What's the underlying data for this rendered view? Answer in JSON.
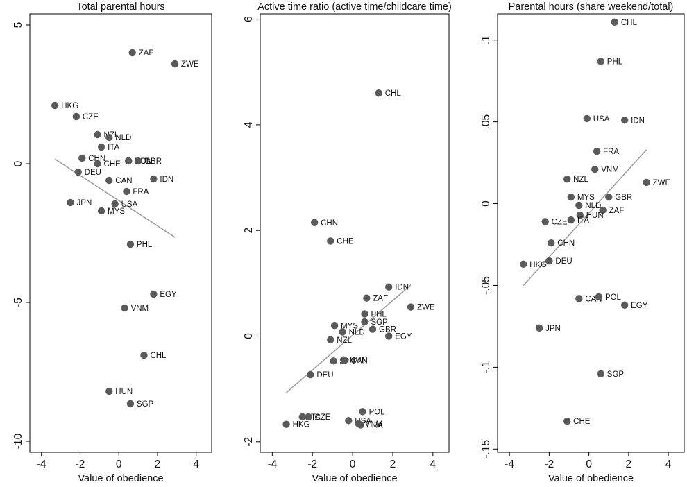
{
  "chart_data": [
    {
      "type": "scatter",
      "title": "Total parental hours",
      "xlabel": "Value of obedience",
      "ylabel": "",
      "xlim": [
        -4.6,
        4.8
      ],
      "ylim": [
        -10.4,
        5.4
      ],
      "xticks": [
        -4,
        -2,
        0,
        2,
        4
      ],
      "yticks": [
        5,
        0,
        -5,
        -10
      ],
      "marker_color": "#5a5a5a",
      "fit_color": "#9a9a9a",
      "fit_line": {
        "x": [
          -3.3,
          2.9
        ],
        "y": [
          0.17,
          -2.65
        ]
      },
      "points": [
        {
          "label": "ZAF",
          "x": 0.7,
          "y": 4.0
        },
        {
          "label": "ZWE",
          "x": 2.9,
          "y": 3.6
        },
        {
          "label": "HKG",
          "x": -3.3,
          "y": 2.1
        },
        {
          "label": "CZE",
          "x": -2.2,
          "y": 1.7
        },
        {
          "label": "NZL",
          "x": -1.1,
          "y": 1.05
        },
        {
          "label": "NLD",
          "x": -0.5,
          "y": 0.95
        },
        {
          "label": "ITA",
          "x": -0.9,
          "y": 0.6
        },
        {
          "label": "CHN",
          "x": -1.9,
          "y": 0.2
        },
        {
          "label": "CHE",
          "x": -1.1,
          "y": 0.0
        },
        {
          "label": "POL",
          "x": 0.5,
          "y": 0.1
        },
        {
          "label": "HUN",
          "x": 0.5,
          "y": 0.1
        },
        {
          "label": "GBR",
          "x": 1.0,
          "y": 0.1
        },
        {
          "label": "DEU",
          "x": -2.1,
          "y": -0.3
        },
        {
          "label": "CAN",
          "x": -0.5,
          "y": -0.6
        },
        {
          "label": "IDN",
          "x": 1.8,
          "y": -0.55
        },
        {
          "label": "FRA",
          "x": 0.4,
          "y": -1.0
        },
        {
          "label": "JPN",
          "x": -2.5,
          "y": -1.4
        },
        {
          "label": "USA",
          "x": -0.2,
          "y": -1.45
        },
        {
          "label": "MYS",
          "x": -0.9,
          "y": -1.7
        },
        {
          "label": "PHL",
          "x": 0.6,
          "y": -2.9
        },
        {
          "label": "EGY",
          "x": 1.8,
          "y": -4.7
        },
        {
          "label": "VNM",
          "x": 0.3,
          "y": -5.2
        },
        {
          "label": "CHL",
          "x": 1.3,
          "y": -6.9
        },
        {
          "label": "HUN",
          "x": -0.5,
          "y": -8.2
        },
        {
          "label": "SGP",
          "x": 0.6,
          "y": -8.65
        }
      ]
    },
    {
      "type": "scatter",
      "title": "Active time ratio (active time/childcare time)",
      "xlabel": "Value of obedience",
      "ylabel": "",
      "xlim": [
        -4.6,
        4.8
      ],
      "ylim": [
        -2.2,
        6.1
      ],
      "xticks": [
        -4,
        -2,
        0,
        2,
        4
      ],
      "yticks": [
        6,
        4,
        2,
        0,
        -2
      ],
      "marker_color": "#5a5a5a",
      "fit_color": "#9a9a9a",
      "fit_line": {
        "x": [
          -3.3,
          2.9
        ],
        "y": [
          -1.07,
          0.97
        ]
      },
      "points": [
        {
          "label": "CHL",
          "x": 1.3,
          "y": 4.6
        },
        {
          "label": "CHN",
          "x": -1.9,
          "y": 2.15
        },
        {
          "label": "CHE",
          "x": -1.1,
          "y": 1.8
        },
        {
          "label": "IDN",
          "x": 1.8,
          "y": 0.93
        },
        {
          "label": "ZAF",
          "x": 0.7,
          "y": 0.72
        },
        {
          "label": "ZWE",
          "x": 2.9,
          "y": 0.55
        },
        {
          "label": "PHL",
          "x": 0.6,
          "y": 0.42
        },
        {
          "label": "SGP",
          "x": 0.6,
          "y": 0.27
        },
        {
          "label": "MYS",
          "x": -0.9,
          "y": 0.2
        },
        {
          "label": "GBR",
          "x": 1.0,
          "y": 0.13
        },
        {
          "label": "NLD",
          "x": -0.5,
          "y": 0.08
        },
        {
          "label": "EGY",
          "x": 1.8,
          "y": 0.0
        },
        {
          "label": "NZL",
          "x": -1.1,
          "y": -0.07
        },
        {
          "label": "HUN",
          "x": -0.45,
          "y": -0.45
        },
        {
          "label": "JPN",
          "x": -0.95,
          "y": -0.47
        },
        {
          "label": "CAN",
          "x": -0.4,
          "y": -0.46
        },
        {
          "label": "DEU",
          "x": -2.1,
          "y": -0.73
        },
        {
          "label": "POL",
          "x": 0.5,
          "y": -1.43
        },
        {
          "label": "ITA",
          "x": -2.5,
          "y": -1.53
        },
        {
          "label": "CZE",
          "x": -2.2,
          "y": -1.53
        },
        {
          "label": "USA",
          "x": -0.2,
          "y": -1.6
        },
        {
          "label": "VNM",
          "x": 0.3,
          "y": -1.66
        },
        {
          "label": "FRA",
          "x": 0.4,
          "y": -1.68
        },
        {
          "label": "HKG",
          "x": -3.3,
          "y": -1.67
        }
      ]
    },
    {
      "type": "scatter",
      "title": "Parental hours (share weekend/total)",
      "xlabel": "Value of obedience",
      "ylabel": "",
      "xlim": [
        -4.6,
        4.8
      ],
      "ylim": [
        -0.152,
        0.116
      ],
      "xticks": [
        -4,
        -2,
        0,
        2,
        4
      ],
      "yticks": [
        0.1,
        0.05,
        0,
        -0.05,
        -0.1,
        -0.15
      ],
      "ytick_labels": [
        ".1",
        ".05",
        "0",
        "-.05",
        "-.1",
        "-.15"
      ],
      "marker_color": "#5a5a5a",
      "fit_color": "#9a9a9a",
      "fit_line": {
        "x": [
          -3.3,
          2.9
        ],
        "y": [
          -0.05,
          0.033
        ]
      },
      "points": [
        {
          "label": "CHL",
          "x": 1.3,
          "y": 0.111
        },
        {
          "label": "PHL",
          "x": 0.6,
          "y": 0.087
        },
        {
          "label": "USA",
          "x": -0.1,
          "y": 0.052
        },
        {
          "label": "IDN",
          "x": 1.8,
          "y": 0.051
        },
        {
          "label": "FRA",
          "x": 0.4,
          "y": 0.032
        },
        {
          "label": "VNM",
          "x": 0.3,
          "y": 0.021
        },
        {
          "label": "NZL",
          "x": -1.1,
          "y": 0.015
        },
        {
          "label": "ZWE",
          "x": 2.9,
          "y": 0.013
        },
        {
          "label": "MYS",
          "x": -0.9,
          "y": 0.004
        },
        {
          "label": "GBR",
          "x": 1.0,
          "y": 0.004
        },
        {
          "label": "NLD",
          "x": -0.5,
          "y": -0.001
        },
        {
          "label": "ZAF",
          "x": 0.7,
          "y": -0.004
        },
        {
          "label": "HUN",
          "x": -0.45,
          "y": -0.007
        },
        {
          "label": "CZE",
          "x": -2.2,
          "y": -0.011
        },
        {
          "label": "ITA",
          "x": -0.9,
          "y": -0.01
        },
        {
          "label": "CHN",
          "x": -1.9,
          "y": -0.024
        },
        {
          "label": "DEU",
          "x": -2.0,
          "y": -0.035
        },
        {
          "label": "HKG",
          "x": -3.3,
          "y": -0.037
        },
        {
          "label": "CAN",
          "x": -0.5,
          "y": -0.058
        },
        {
          "label": "POL",
          "x": 0.5,
          "y": -0.057
        },
        {
          "label": "EGY",
          "x": 1.8,
          "y": -0.062
        },
        {
          "label": "JPN",
          "x": -2.5,
          "y": -0.076
        },
        {
          "label": "SGP",
          "x": 0.6,
          "y": -0.104
        },
        {
          "label": "CHE",
          "x": -1.1,
          "y": -0.133
        }
      ]
    }
  ]
}
